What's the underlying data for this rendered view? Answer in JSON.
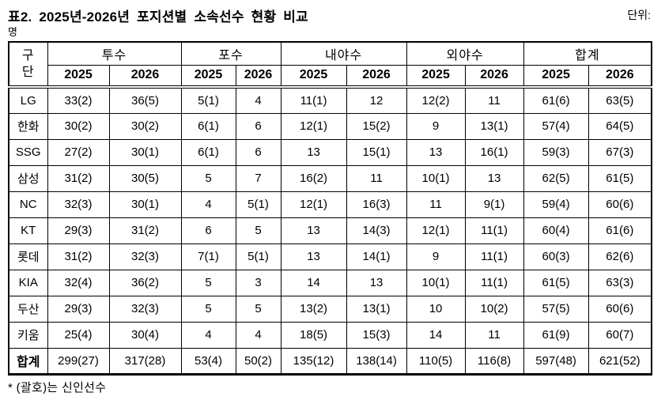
{
  "title": "표2. 2025년-2026년 포지션별 소속선수 현황 비교",
  "unit_label": "단위:",
  "unit_value": "명",
  "footnote": "* (괄호)는 신인선수",
  "table": {
    "corner_lines": [
      "구",
      "단"
    ],
    "group_headers": [
      "투수",
      "포수",
      "내야수",
      "외야수",
      "합계"
    ],
    "year_headers": [
      "2025",
      "2026"
    ],
    "rows": [
      {
        "team": "LG",
        "values": [
          "33(2)",
          "36(5)",
          "5(1)",
          "4",
          "11(1)",
          "12",
          "12(2)",
          "11",
          "61(6)",
          "63(5)"
        ]
      },
      {
        "team": "한화",
        "values": [
          "30(2)",
          "30(2)",
          "6(1)",
          "6",
          "12(1)",
          "15(2)",
          "9",
          "13(1)",
          "57(4)",
          "64(5)"
        ]
      },
      {
        "team": "SSG",
        "values": [
          "27(2)",
          "30(1)",
          "6(1)",
          "6",
          "13",
          "15(1)",
          "13",
          "16(1)",
          "59(3)",
          "67(3)"
        ]
      },
      {
        "team": "삼성",
        "values": [
          "31(2)",
          "30(5)",
          "5",
          "7",
          "16(2)",
          "11",
          "10(1)",
          "13",
          "62(5)",
          "61(5)"
        ]
      },
      {
        "team": "NC",
        "values": [
          "32(3)",
          "30(1)",
          "4",
          "5(1)",
          "12(1)",
          "16(3)",
          "11",
          "9(1)",
          "59(4)",
          "60(6)"
        ]
      },
      {
        "team": "KT",
        "values": [
          "29(3)",
          "31(2)",
          "6",
          "5",
          "13",
          "14(3)",
          "12(1)",
          "11(1)",
          "60(4)",
          "61(6)"
        ]
      },
      {
        "team": "롯데",
        "values": [
          "31(2)",
          "32(3)",
          "7(1)",
          "5(1)",
          "13",
          "14(1)",
          "9",
          "11(1)",
          "60(3)",
          "62(6)"
        ]
      },
      {
        "team": "KIA",
        "values": [
          "32(4)",
          "36(2)",
          "5",
          "3",
          "14",
          "13",
          "10(1)",
          "11(1)",
          "61(5)",
          "63(3)"
        ]
      },
      {
        "team": "두산",
        "values": [
          "29(3)",
          "32(3)",
          "5",
          "5",
          "13(2)",
          "13(1)",
          "10",
          "10(2)",
          "57(5)",
          "60(6)"
        ]
      },
      {
        "team": "키움",
        "values": [
          "25(4)",
          "30(4)",
          "4",
          "4",
          "18(5)",
          "15(3)",
          "14",
          "11",
          "61(9)",
          "60(7)"
        ]
      }
    ],
    "total_row": {
      "team": "합계",
      "values": [
        "299(27)",
        "317(28)",
        "53(4)",
        "50(2)",
        "135(12)",
        "138(14)",
        "110(5)",
        "116(8)",
        "597(48)",
        "621(52)"
      ]
    }
  }
}
